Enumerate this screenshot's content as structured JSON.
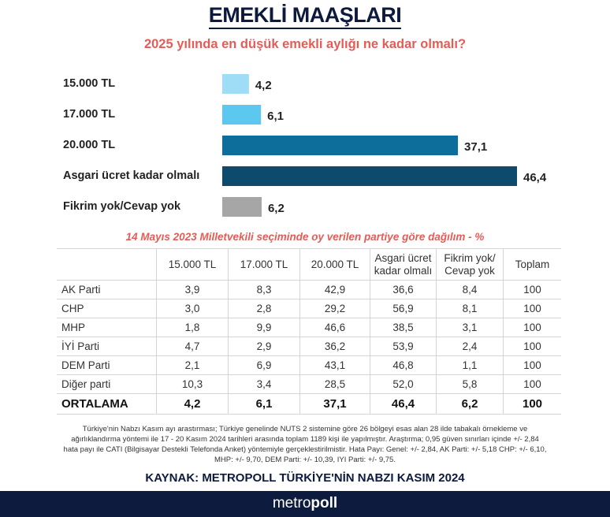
{
  "title": "EMEKLİ MAAŞLARI",
  "subtitle": "2025 yılında en düşük emekli aylığı ne kadar olmalı?",
  "chart_data": {
    "type": "bar",
    "orientation": "horizontal",
    "categories": [
      "15.000 TL",
      "17.000 TL",
      "20.000 TL",
      "Asgari ücret kadar olmalı",
      "Fikrim yok/Cevap yok"
    ],
    "values": [
      4.2,
      6.1,
      37.1,
      46.4,
      6.2
    ],
    "value_labels": [
      "4,2",
      "6,1",
      "37,1",
      "46,4",
      "6,2"
    ],
    "colors": [
      "#9fdcf5",
      "#5cc8ef",
      "#0e6e9b",
      "#0d4a6b",
      "#a6a6a6"
    ],
    "xlim": [
      0,
      46.4
    ],
    "grid": false
  },
  "table": {
    "caption": "14 Mayıs 2023 Milletvekili seçiminde oy verilen partiye göre dağılım - %",
    "headers": [
      "",
      "15.000 TL",
      "17.000 TL",
      "20.000 TL",
      "Asgari ücret kadar olmalı",
      "Fikrim yok/ Cevap yok",
      "Toplam"
    ],
    "rows": [
      [
        "AK Parti",
        "3,9",
        "8,3",
        "42,9",
        "36,6",
        "8,4",
        "100"
      ],
      [
        "CHP",
        "3,0",
        "2,8",
        "29,2",
        "56,9",
        "8,1",
        "100"
      ],
      [
        "MHP",
        "1,8",
        "9,9",
        "46,6",
        "38,5",
        "3,1",
        "100"
      ],
      [
        "İYİ Parti",
        "4,7",
        "2,9",
        "36,2",
        "53,9",
        "2,4",
        "100"
      ],
      [
        "DEM Parti",
        "2,1",
        "6,9",
        "43,1",
        "46,8",
        "1,1",
        "100"
      ],
      [
        "Diğer parti",
        "10,3",
        "3,4",
        "28,5",
        "52,0",
        "5,8",
        "100"
      ]
    ],
    "average": [
      "ORTALAMA",
      "4,2",
      "6,1",
      "37,1",
      "46,4",
      "6,2",
      "100"
    ]
  },
  "note": "Türkiye'nin Nabzı Kasım ayı arastırması; Türkiye genelinde NUTS 2 sistemine göre 26 bölgeyi esas alan 28 ilde tabakalı örnekleme ve ağırlıklandırma yöntemi ile 17 - 20 Kasım 2024 tarihleri arasında toplam 1189 kişi ile yapılmıştır. Araştırma; 0,95 güven sınırları içinde +/- 2,84 hata payı ile CATI (Bilgisayar Destekli Telefonda Anket) yöntemiyle gerçeklestirilmistir. Hata Payı: Genel: +/- 2,84, AK Parti: +/- 5,18 CHP: +/- 6,10, MHP: +/- 9,70, DEM Parti: +/- 10,39, IYI Parti: +/- 9,75.",
  "source": "KAYNAK: METROPOLL TÜRKİYE'NİN NABZI KASIM 2024",
  "footer": {
    "logo_light": "metro",
    "logo_bold": "poll"
  }
}
